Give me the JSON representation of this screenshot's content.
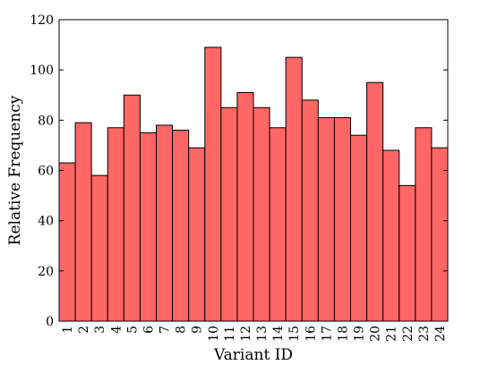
{
  "chart_data": {
    "type": "bar",
    "title": "",
    "xlabel": "Variant ID",
    "ylabel": "Relative Frequency",
    "categories": [
      "1",
      "2",
      "3",
      "4",
      "5",
      "6",
      "7",
      "8",
      "9",
      "10",
      "11",
      "12",
      "13",
      "14",
      "15",
      "16",
      "17",
      "18",
      "19",
      "20",
      "21",
      "22",
      "23",
      "24"
    ],
    "values": [
      63,
      79,
      58,
      77,
      90,
      75,
      78,
      76,
      69,
      109,
      85,
      91,
      85,
      77,
      105,
      88,
      81,
      81,
      74,
      95,
      68,
      54,
      77,
      69
    ],
    "ylim": [
      0,
      120
    ],
    "yticks": [
      0,
      20,
      40,
      60,
      80,
      100,
      120
    ],
    "grid": false,
    "bar_color": "#ff6666",
    "edge_color": "#000000"
  }
}
